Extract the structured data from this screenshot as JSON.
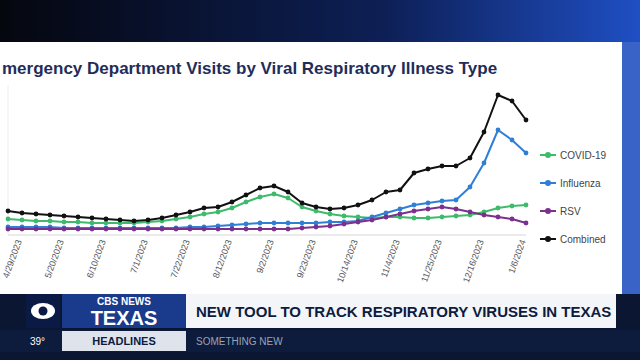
{
  "chart_data": {
    "type": "line",
    "title": "mergency Department Visits by Viral Respiratory Illness Type",
    "categories": [
      null,
      "4/29/2023",
      null,
      null,
      "5/20/2023",
      null,
      null,
      "6/10/2023",
      null,
      null,
      "7/1/2023",
      null,
      null,
      "7/22/2023",
      null,
      null,
      "8/12/2023",
      null,
      null,
      "9/2/2023",
      null,
      null,
      "9/23/2023",
      null,
      null,
      "10/14/2023",
      null,
      null,
      "11/4/2023",
      null,
      null,
      "11/25/2023",
      null,
      null,
      "12/16/2023",
      null,
      null,
      "1/6/2024"
    ],
    "series": [
      {
        "name": "COVID-19",
        "color": "#3dbb6b",
        "values": [
          16,
          15,
          14,
          14,
          13,
          13,
          12,
          12,
          12,
          12,
          13,
          14,
          16,
          18,
          21,
          23,
          27,
          33,
          38,
          41,
          37,
          28,
          24,
          21,
          19,
          18,
          17,
          18,
          18,
          17,
          17,
          18,
          19,
          20,
          23,
          27,
          29,
          30
        ]
      },
      {
        "name": "Influenza",
        "color": "#2f7fd6",
        "values": [
          8,
          8,
          8,
          8,
          7,
          7,
          7,
          7,
          7,
          7,
          7,
          7,
          7,
          8,
          8,
          9,
          10,
          11,
          12,
          12,
          12,
          12,
          12,
          13,
          13,
          14,
          18,
          22,
          26,
          30,
          32,
          34,
          35,
          48,
          72,
          105,
          95,
          82
        ]
      },
      {
        "name": "RSV",
        "color": "#7b2f8e",
        "values": [
          6,
          6,
          6,
          6,
          6,
          6,
          6,
          6,
          6,
          6,
          6,
          6,
          6,
          6,
          6,
          6,
          6,
          6,
          6,
          6,
          6,
          7,
          8,
          9,
          11,
          13,
          15,
          18,
          21,
          24,
          26,
          28,
          26,
          23,
          20,
          18,
          16,
          12
        ]
      },
      {
        "name": "Combined",
        "color": "#111111",
        "values": [
          24,
          22,
          21,
          20,
          19,
          18,
          17,
          16,
          15,
          14,
          15,
          17,
          20,
          23,
          27,
          28,
          33,
          40,
          47,
          49,
          43,
          32,
          28,
          26,
          27,
          30,
          35,
          43,
          45,
          62,
          66,
          69,
          69,
          77,
          103,
          140,
          134,
          115
        ]
      }
    ],
    "ylim": [
      0,
      150
    ],
    "tick_labels": "x",
    "legend": "right",
    "marker": "circle"
  },
  "broadcast": {
    "network": "CBS NEWS",
    "region": "TEXAS",
    "headline": "NEW TOOL TO TRACK RESPIRATORY VIRUSES IN TEXAS",
    "temperature": "39°",
    "segment": "HEADLINES",
    "ticker": "SOMETHING NEW"
  }
}
